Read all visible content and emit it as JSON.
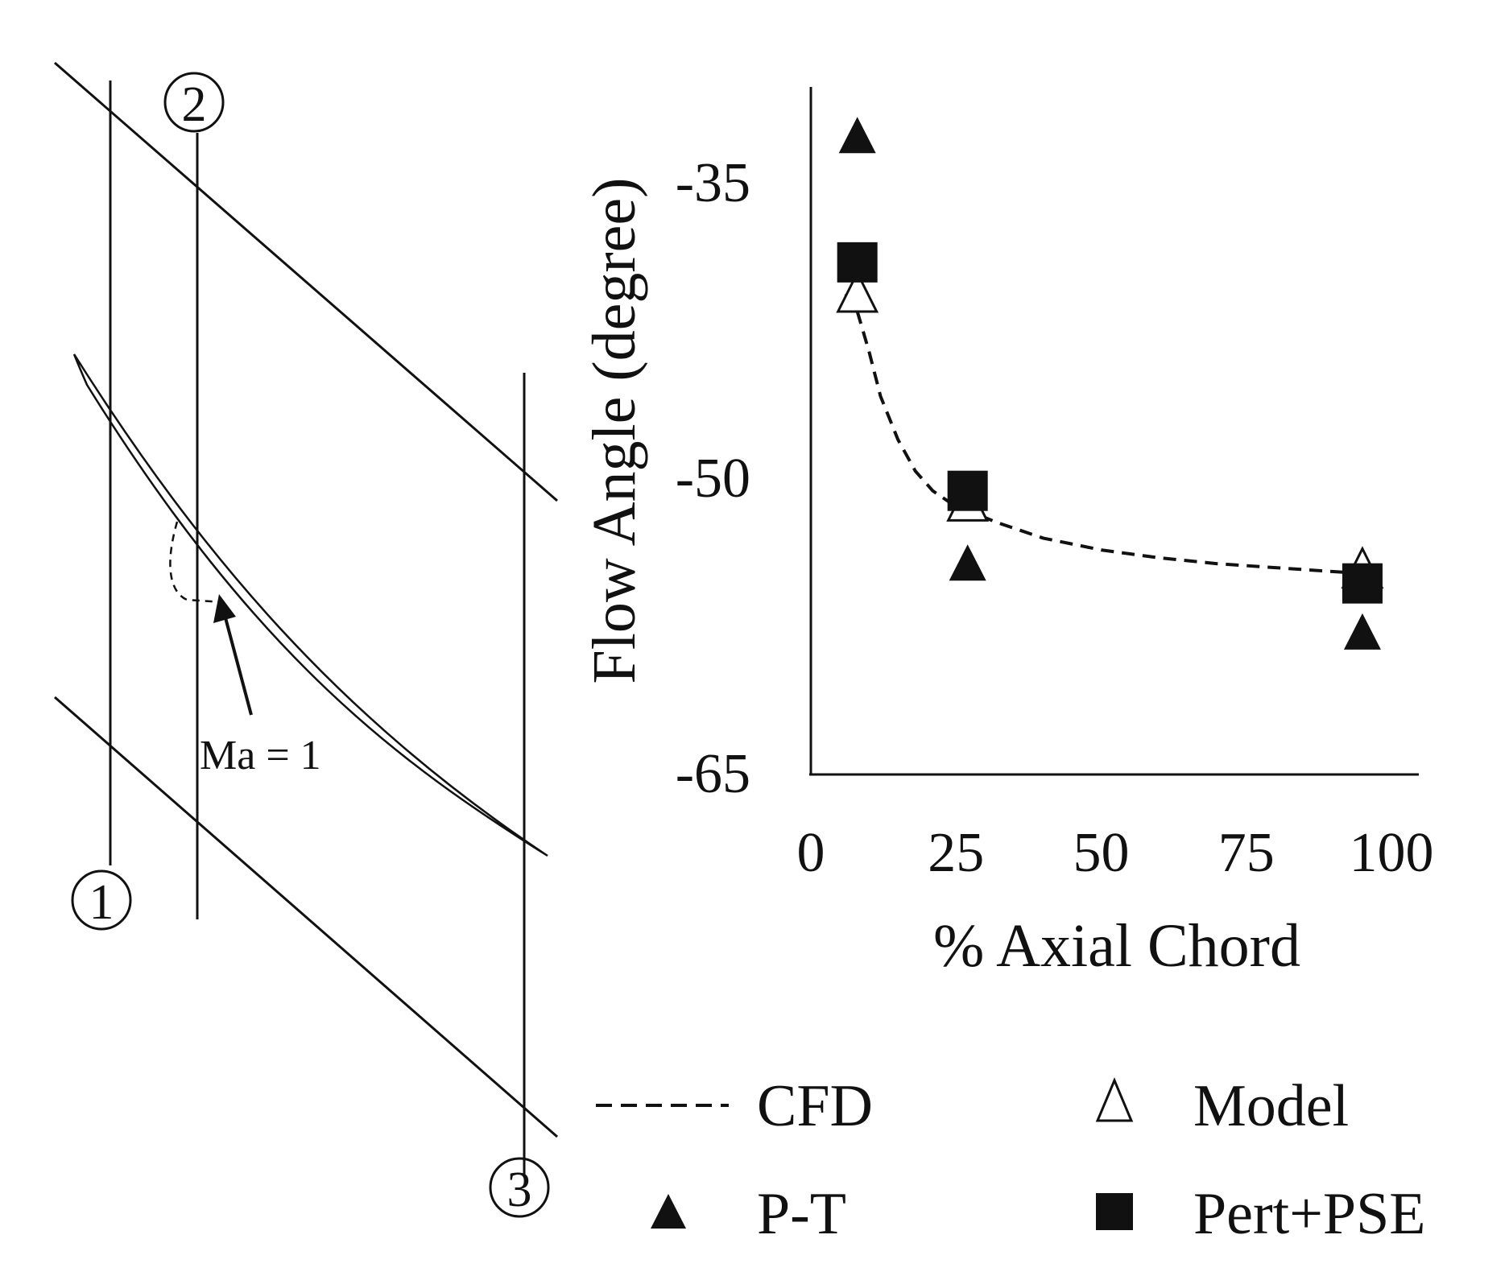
{
  "schematic": {
    "stations": [
      "1",
      "2",
      "3"
    ],
    "annotation": "Ma = 1"
  },
  "legend": {
    "cfd": "CFD",
    "model": "Model",
    "pt": "P-T",
    "pert_pse": "Pert+PSE"
  },
  "chart_data": {
    "type": "scatter",
    "title": "",
    "xlabel": "% Axial Chord",
    "ylabel": "Flow Angle (degree)",
    "xlim": [
      0,
      100
    ],
    "ylim": [
      -65,
      -30
    ],
    "xticks": [
      0,
      25,
      50,
      75,
      100
    ],
    "xtick_labels": [
      "0",
      "25",
      "50",
      "75",
      "100"
    ],
    "yticks": [
      -35,
      -50,
      -65
    ],
    "ytick_labels": [
      "-35",
      "-50",
      "-65"
    ],
    "grid": false,
    "legend_position": "bottom",
    "series": [
      {
        "name": "CFD",
        "style": "dashed-line",
        "x": [
          6,
          8,
          10,
          12,
          15,
          18,
          21,
          24,
          27,
          32,
          40,
          50,
          60,
          70,
          80,
          90,
          95
        ],
        "y": [
          -40.6,
          -41.5,
          -43.5,
          -45.8,
          -48.0,
          -49.6,
          -50.6,
          -51.2,
          -51.6,
          -52.2,
          -53.0,
          -53.6,
          -54.0,
          -54.3,
          -54.5,
          -54.7,
          -54.8
        ]
      },
      {
        "name": "Model",
        "style": "open-triangle",
        "x": [
          8,
          27,
          95
        ],
        "y": [
          -40.6,
          -51.2,
          -54.6
        ]
      },
      {
        "name": "P-T",
        "style": "filled-triangle",
        "x": [
          8,
          27,
          95
        ],
        "y": [
          -32.6,
          -54.3,
          -57.8
        ]
      },
      {
        "name": "Pert+PSE",
        "style": "filled-square",
        "x": [
          8,
          27,
          95
        ],
        "y": [
          -39.0,
          -50.6,
          -55.3
        ]
      }
    ]
  }
}
